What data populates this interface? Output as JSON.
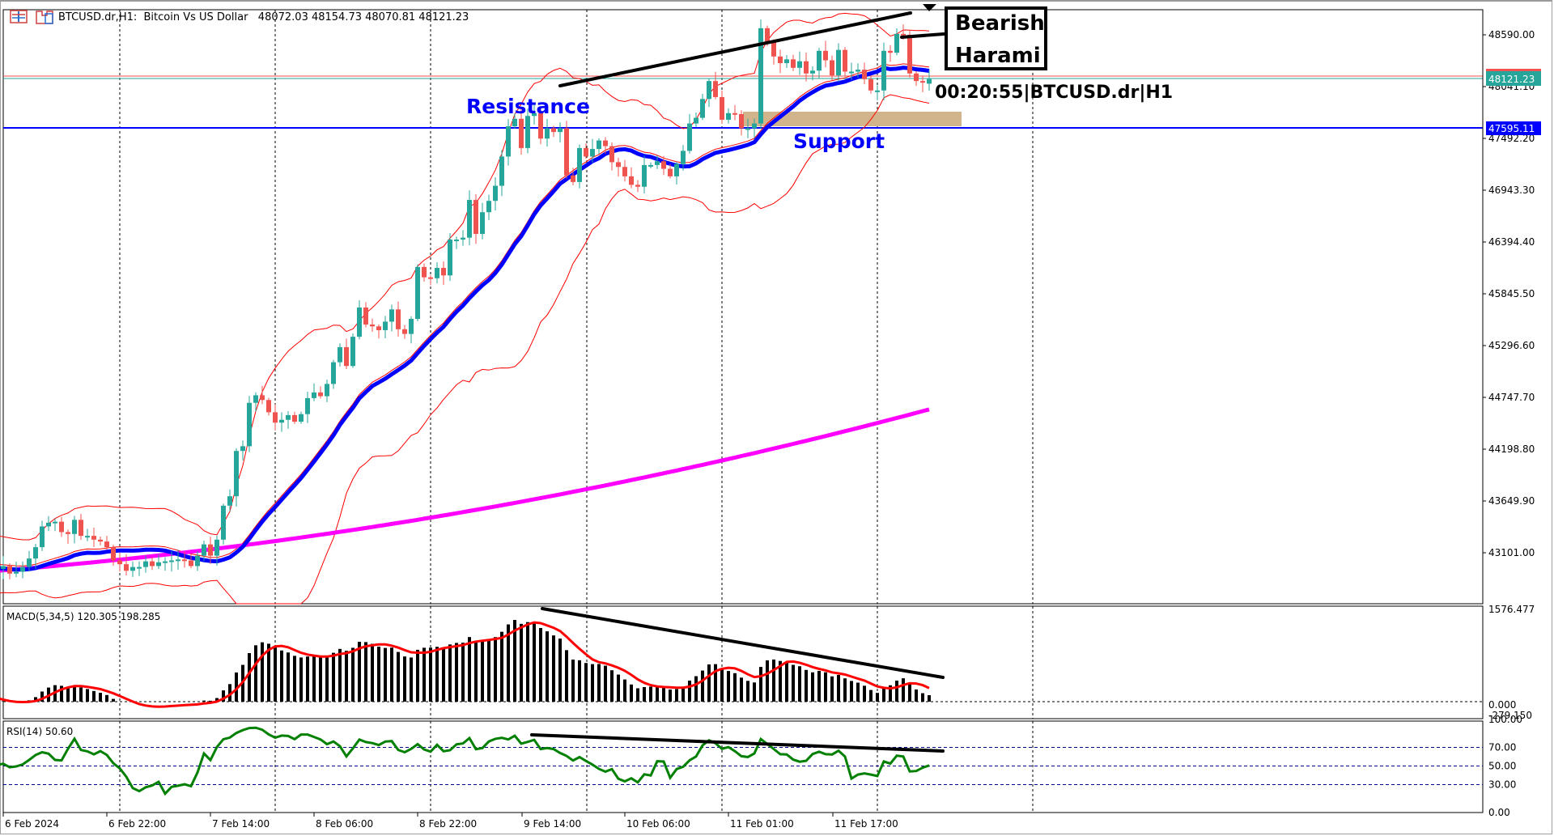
{
  "window": {
    "symbol": "BTCUSD.dr",
    "timeframe": "H1",
    "description": "Bitcoin Vs US Dollar",
    "ohlc_header": "48072.03 48154.73 48070.81 48121.23",
    "title_line": "BTCUSD.dr,H1:  Bitcoin Vs US Dollar   48072.03 48154.73 48070.81 48121.23"
  },
  "colors": {
    "bull": "#26a69a",
    "bear": "#ef5350",
    "ma_fast": "#0000ff",
    "ma_slow": "#ff00ff",
    "bollinger": "#ff0000",
    "macd_hist": "#000000",
    "macd_signal": "#ff0000",
    "rsi_line": "#008000",
    "rsi_line_low": "#ff0000",
    "level_line": "#0000ff",
    "bid_line": "#26a69a",
    "ask_line": "#ef5350",
    "support_zone": "#d2b48c"
  },
  "annotations": {
    "resistance_label": "Resistance",
    "support_label": "Support",
    "pattern_label_line1": "Bearish",
    "pattern_label_line2": "Harami",
    "countdown": "00:20:55|BTCUSD.dr|H1",
    "level_price": "47595.11",
    "current_price": "48121.23"
  },
  "indicators": {
    "macd_label": "MACD(5,34,5) 120.305 198.285",
    "rsi_label": "RSI(14) 50.60"
  },
  "chart_data": {
    "type": "candlestick",
    "title": "BTCUSD.dr,H1: Bitcoin Vs US Dollar",
    "price_axis": {
      "ticks": [
        "48590.00",
        "48041.10",
        "47492.20",
        "46943.30",
        "46394.40",
        "45845.50",
        "45296.60",
        "44747.70",
        "44198.80",
        "43649.90",
        "43101.00"
      ],
      "tick_values": [
        48590.0,
        48041.1,
        47492.2,
        46943.3,
        46394.4,
        45845.5,
        45296.6,
        44747.7,
        44198.8,
        43649.9,
        43101.0
      ],
      "ylim": [
        42700,
        48950
      ]
    },
    "time_axis": {
      "ticks": [
        "6 Feb 2024",
        "6 Feb 22:00",
        "7 Feb 14:00",
        "8 Feb 06:00",
        "8 Feb 22:00",
        "9 Feb 14:00",
        "10 Feb 06:00",
        "11 Feb 01:00",
        "11 Feb 17:00"
      ]
    },
    "last_ohlc": {
      "open": 48072.03,
      "high": 48154.73,
      "low": 48070.81,
      "close": 48121.23
    },
    "horizontal_level": 47595.11,
    "closes": [
      42910,
      42880,
      42850,
      42960,
      43060,
      43280,
      43180,
      42950,
      42860,
      42880,
      42930,
      42960,
      42880,
      42900,
      42950,
      43040,
      43160,
      43380,
      43420,
      43430,
      43320,
      43300,
      43450,
      43280,
      43280,
      43240,
      43220,
      43160,
      43020,
      42980,
      42910,
      42950,
      42950,
      43010,
      42960,
      43000,
      43010,
      43020,
      43030,
      43020,
      42960,
      43070,
      43190,
      43070,
      43240,
      43600,
      43700,
      44180,
      44230,
      44690,
      44770,
      44720,
      44590,
      44480,
      44510,
      44560,
      44490,
      44570,
      44740,
      44800,
      44760,
      44890,
      45120,
      45280,
      45080,
      45390,
      45700,
      45520,
      45500,
      45460,
      45550,
      45680,
      45470,
      45420,
      45580,
      46130,
      46020,
      46010,
      46120,
      46040,
      46420,
      46420,
      46440,
      46840,
      46480,
      46710,
      46830,
      46990,
      47300,
      47620,
      47700,
      47390,
      47730,
      47760,
      47490,
      47600,
      47560,
      47600,
      47100,
      47030,
      47390,
      47300,
      47380,
      47470,
      47410,
      47240,
      47190,
      47090,
      47000,
      46980,
      47210,
      47210,
      47250,
      47170,
      47090,
      47220,
      47360,
      47650,
      47710,
      47910,
      48100,
      47930,
      47690,
      47760,
      47750,
      47600,
      47600,
      47650,
      48660,
      48510,
      48360,
      48290,
      48330,
      48240,
      48310,
      48180,
      48210,
      48420,
      48320,
      48160,
      48430,
      48200,
      48200,
      48220,
      48120,
      48000,
      48000,
      48420,
      48400,
      48600,
      48590,
      48180,
      48100,
      48090,
      48121.23
    ],
    "series": [
      {
        "name": "MA fast (blue)",
        "role": "moving average"
      },
      {
        "name": "MA slow (magenta)",
        "role": "moving average"
      },
      {
        "name": "Bollinger Bands (red)",
        "role": "bands"
      }
    ],
    "macd": {
      "params": "5,34,5",
      "main": 120.305,
      "signal": 198.285,
      "axis_ticks": [
        "1576.477",
        "0.000",
        "-279.150"
      ]
    },
    "rsi": {
      "period": 14,
      "value": 50.6,
      "axis_ticks": [
        "100.00",
        "70.00",
        "50.00",
        "30.00",
        "0.00"
      ],
      "levels": [
        70,
        50,
        30
      ]
    }
  }
}
